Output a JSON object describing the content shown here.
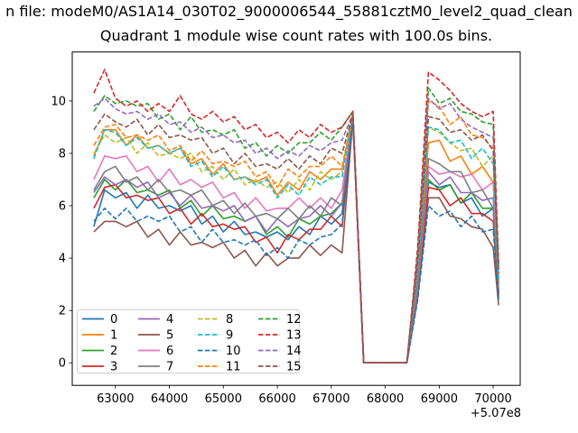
{
  "figure": {
    "suptitle": "n file: modeM0/AS1A14_030T02_9000006544_55881cztM0_level2_quad_clean",
    "axes_title": "Quadrant 1 module wise count rates with 100.0s bins.",
    "x_offset_text": "+5.07e8",
    "background": "#ffffff",
    "spine_color": "#000000",
    "legend_border_color": "#cfcfcf"
  },
  "chart_data": {
    "type": "line",
    "title": "Quadrant 1 module wise count rates with 100.0s bins.",
    "xlabel": "",
    "ylabel": "",
    "x_offset": "+5.07e8",
    "xlim": [
      62200,
      70500
    ],
    "ylim": [
      -0.86,
      11.87
    ],
    "xticks": [
      63000,
      64000,
      65000,
      66000,
      67000,
      68000,
      69000,
      70000
    ],
    "yticks": [
      0,
      2,
      4,
      6,
      8,
      10
    ],
    "grid": false,
    "legend_position": "lower left",
    "legend_columns": 4,
    "x": [
      62600,
      62800,
      63000,
      63200,
      63400,
      63600,
      63800,
      64000,
      64200,
      64400,
      64600,
      64800,
      65000,
      65200,
      65400,
      65600,
      65800,
      66000,
      66200,
      66400,
      66600,
      66800,
      67000,
      67200,
      67400,
      67600,
      67800,
      68000,
      68200,
      68400,
      68600,
      68800,
      69000,
      69200,
      69400,
      69600,
      69800,
      70000,
      70100
    ],
    "series": [
      {
        "name": "0",
        "color": "#1f77b4",
        "line_style": "solid",
        "values": [
          5.2,
          6.6,
          6.3,
          6.5,
          5.9,
          6.4,
          5.9,
          6.0,
          5.8,
          6.0,
          5.3,
          5.6,
          5.0,
          5.4,
          4.9,
          5.0,
          4.8,
          5.0,
          4.7,
          5.2,
          4.9,
          5.6,
          5.3,
          5.7,
          9.4,
          0,
          0,
          0,
          0,
          0,
          2.8,
          6.9,
          6.7,
          6.8,
          6.1,
          6.3,
          5.6,
          5.9,
          2.7
        ]
      },
      {
        "name": "1",
        "color": "#ff7f0e",
        "line_style": "solid",
        "values": [
          7.9,
          8.9,
          8.9,
          8.3,
          8.7,
          8.2,
          8.3,
          8.0,
          8.2,
          7.6,
          7.8,
          7.2,
          7.6,
          7.0,
          7.1,
          6.9,
          7.1,
          6.4,
          6.9,
          6.6,
          7.3,
          7.0,
          7.4,
          7.4,
          9.5,
          0,
          0,
          0,
          0,
          0,
          3.4,
          8.4,
          8.5,
          7.7,
          7.9,
          7.2,
          7.5,
          6.9,
          3.1
        ]
      },
      {
        "name": "2",
        "color": "#2ca02c",
        "line_style": "solid",
        "values": [
          6.3,
          7.0,
          6.6,
          7.0,
          6.5,
          6.6,
          6.4,
          6.6,
          5.9,
          6.2,
          5.6,
          6.0,
          5.5,
          5.6,
          5.4,
          5.6,
          4.9,
          5.2,
          4.8,
          5.5,
          5.3,
          5.6,
          5.7,
          6.1,
          9.4,
          0,
          0,
          0,
          0,
          0,
          2.8,
          7.0,
          6.6,
          6.8,
          6.1,
          6.5,
          5.9,
          5.9,
          2.6
        ]
      },
      {
        "name": "3",
        "color": "#d62728",
        "line_style": "solid",
        "values": [
          5.9,
          6.7,
          6.8,
          6.3,
          6.4,
          6.2,
          6.3,
          5.7,
          5.9,
          5.3,
          5.7,
          5.2,
          5.3,
          5.1,
          5.2,
          4.6,
          4.8,
          4.2,
          4.9,
          4.7,
          5.1,
          5.1,
          5.6,
          5.2,
          9.3,
          0,
          0,
          0,
          0,
          0,
          2.7,
          6.7,
          6.6,
          6.0,
          6.3,
          5.7,
          5.7,
          5.4,
          2.5
        ]
      },
      {
        "name": "4",
        "color": "#9467bd",
        "line_style": "solid",
        "values": [
          6.5,
          7.1,
          6.8,
          7.0,
          6.7,
          6.9,
          6.3,
          6.5,
          6.0,
          6.4,
          5.9,
          6.0,
          5.8,
          6.0,
          5.4,
          5.6,
          5.0,
          5.5,
          5.2,
          5.5,
          5.6,
          6.0,
          5.6,
          6.1,
          9.4,
          0,
          0,
          0,
          0,
          0,
          2.9,
          7.3,
          6.8,
          7.1,
          6.5,
          6.5,
          6.2,
          6.3,
          2.7
        ]
      },
      {
        "name": "5",
        "color": "#8c564b",
        "line_style": "solid",
        "values": [
          5.0,
          5.4,
          5.4,
          5.2,
          5.4,
          4.8,
          5.1,
          4.5,
          5.0,
          4.5,
          4.6,
          4.4,
          4.6,
          4.0,
          4.3,
          3.7,
          4.2,
          3.7,
          4.0,
          4.0,
          4.5,
          4.1,
          4.5,
          4.2,
          9.3,
          0,
          0,
          0,
          0,
          0,
          2.5,
          6.3,
          6.3,
          5.6,
          5.5,
          5.2,
          5.1,
          4.4,
          2.2
        ]
      },
      {
        "name": "6",
        "color": "#e377c2",
        "line_style": "solid",
        "values": [
          7.0,
          7.9,
          7.8,
          7.9,
          7.3,
          7.5,
          6.9,
          7.4,
          6.8,
          7.0,
          6.7,
          6.9,
          6.3,
          6.5,
          5.9,
          6.3,
          5.8,
          5.9,
          5.9,
          6.3,
          5.9,
          6.3,
          5.9,
          6.6,
          9.4,
          0,
          0,
          0,
          0,
          0,
          3.0,
          7.5,
          7.2,
          7.3,
          7.1,
          7.2,
          6.6,
          6.9,
          3.0
        ]
      },
      {
        "name": "7",
        "color": "#7f7f7f",
        "line_style": "solid",
        "values": [
          6.6,
          7.3,
          7.5,
          6.9,
          7.1,
          6.6,
          7.0,
          6.5,
          6.6,
          6.4,
          6.6,
          6.0,
          6.2,
          5.7,
          6.1,
          5.6,
          5.7,
          5.5,
          5.9,
          5.5,
          6.0,
          5.6,
          6.3,
          6.0,
          9.4,
          0,
          0,
          0,
          0,
          0,
          3.1,
          7.8,
          7.6,
          7.3,
          7.3,
          6.5,
          6.6,
          5.9,
          2.8
        ]
      },
      {
        "name": "8",
        "color": "#bcbd22",
        "line_style": "dashed",
        "values": [
          8.0,
          8.7,
          8.4,
          8.6,
          8.0,
          8.4,
          7.9,
          8.0,
          7.8,
          8.0,
          7.3,
          7.5,
          7.0,
          7.4,
          6.8,
          7.0,
          6.7,
          6.9,
          6.5,
          7.0,
          6.6,
          7.3,
          7.0,
          7.3,
          9.5,
          0,
          0,
          0,
          0,
          0,
          3.6,
          9.0,
          8.8,
          8.4,
          8.1,
          8.2,
          7.5,
          7.9,
          3.2
        ]
      },
      {
        "name": "9",
        "color": "#17becf",
        "line_style": "dashed",
        "values": [
          7.8,
          8.9,
          8.8,
          8.3,
          8.6,
          8.2,
          8.3,
          8.0,
          8.2,
          7.5,
          7.7,
          7.1,
          7.5,
          7.0,
          7.1,
          6.8,
          7.0,
          6.3,
          6.8,
          6.4,
          7.1,
          6.8,
          7.1,
          7.1,
          9.5,
          0,
          0,
          0,
          0,
          0,
          3.6,
          9.0,
          8.9,
          8.4,
          8.5,
          7.8,
          8.2,
          7.6,
          3.2
        ]
      },
      {
        "name": "10",
        "color": "#1f77b4",
        "line_style": "dashed",
        "values": [
          5.4,
          5.9,
          5.5,
          5.9,
          5.4,
          5.6,
          5.4,
          5.6,
          5.0,
          5.2,
          4.6,
          5.1,
          4.6,
          4.7,
          4.5,
          4.7,
          4.1,
          4.4,
          4.0,
          4.7,
          4.5,
          4.8,
          4.9,
          5.3,
          9.3,
          0,
          0,
          0,
          0,
          0,
          2.4,
          6.0,
          5.6,
          5.8,
          5.2,
          5.6,
          5.0,
          5.1,
          2.4
        ]
      },
      {
        "name": "11",
        "color": "#ff7f0e",
        "line_style": "dashed",
        "values": [
          8.3,
          9.0,
          9.1,
          8.6,
          8.7,
          8.5,
          8.7,
          8.1,
          8.3,
          7.7,
          8.1,
          7.6,
          7.7,
          7.5,
          7.7,
          7.1,
          7.3,
          6.7,
          7.4,
          7.1,
          7.5,
          7.5,
          7.9,
          7.5,
          9.5,
          0,
          0,
          0,
          0,
          0,
          4.0,
          10.0,
          9.8,
          9.1,
          9.4,
          8.7,
          8.6,
          8.2,
          3.4
        ]
      },
      {
        "name": "12",
        "color": "#2ca02c",
        "line_style": "dashed",
        "values": [
          9.6,
          10.2,
          9.9,
          10.0,
          9.8,
          9.9,
          9.3,
          9.5,
          8.9,
          9.4,
          8.8,
          8.9,
          8.7,
          8.9,
          8.2,
          8.4,
          7.9,
          8.3,
          8.0,
          8.4,
          8.4,
          8.8,
          8.5,
          9.0,
          9.6,
          0,
          0,
          0,
          0,
          0,
          4.2,
          10.5,
          9.9,
          10.1,
          9.6,
          9.5,
          9.2,
          9.1,
          3.6
        ]
      },
      {
        "name": "13",
        "color": "#d62728",
        "line_style": "dashed",
        "values": [
          10.3,
          11.2,
          10.1,
          9.8,
          10.0,
          9.6,
          9.9,
          9.6,
          10.2,
          9.5,
          9.3,
          9.6,
          9.2,
          9.4,
          8.9,
          9.1,
          8.6,
          8.8,
          8.4,
          8.9,
          8.6,
          9.1,
          8.8,
          9.0,
          9.6,
          0,
          0,
          0,
          0,
          0,
          4.4,
          11.1,
          10.8,
          10.4,
          9.9,
          9.6,
          9.4,
          9.6,
          3.8
        ]
      },
      {
        "name": "14",
        "color": "#9467bd",
        "line_style": "dashed",
        "values": [
          9.8,
          10.1,
          9.7,
          9.5,
          9.6,
          9.3,
          9.5,
          9.1,
          9.2,
          8.8,
          9.0,
          8.6,
          8.7,
          8.4,
          8.5,
          8.0,
          8.2,
          7.8,
          8.1,
          7.9,
          8.3,
          8.1,
          8.4,
          8.5,
          9.5,
          0,
          0,
          0,
          0,
          0,
          4.0,
          10.1,
          9.7,
          9.9,
          9.3,
          9.0,
          8.8,
          8.6,
          3.5
        ]
      },
      {
        "name": "15",
        "color": "#8c564b",
        "line_style": "dashed",
        "values": [
          8.9,
          9.5,
          9.2,
          9.0,
          9.3,
          8.7,
          9.1,
          8.6,
          8.7,
          8.5,
          8.6,
          8.0,
          8.2,
          7.6,
          8.0,
          7.5,
          7.6,
          7.4,
          7.8,
          7.4,
          7.9,
          7.6,
          8.2,
          8.0,
          9.5,
          0,
          0,
          0,
          0,
          0,
          3.8,
          9.4,
          9.3,
          8.8,
          8.9,
          8.5,
          8.7,
          8.1,
          3.4
        ]
      }
    ]
  }
}
